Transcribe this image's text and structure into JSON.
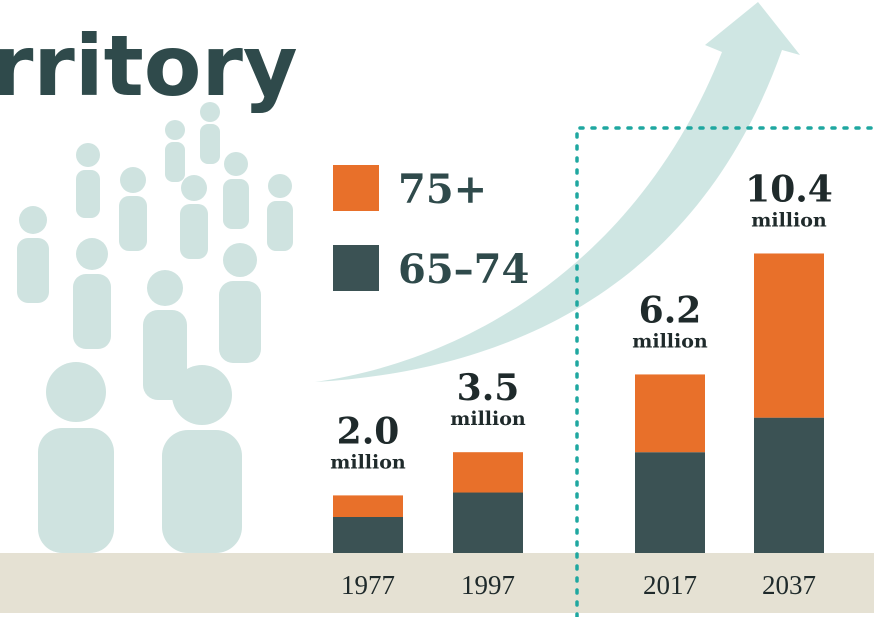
{
  "chart_data": {
    "type": "stacked-bar",
    "title": "rritory",
    "categories": [
      "1977",
      "1997",
      "2017",
      "2037"
    ],
    "series": [
      {
        "name": "65–74",
        "color": "#3b5254",
        "values": [
          1.25,
          2.1,
          3.5,
          4.7
        ]
      },
      {
        "name": "75+",
        "color": "#e8702a",
        "values": [
          0.75,
          1.4,
          2.7,
          5.7
        ]
      }
    ],
    "totals": {
      "values": [
        2.0,
        3.5,
        6.2,
        10.4
      ],
      "value_labels": [
        "2.0",
        "3.5",
        "6.2",
        "10.4"
      ]
    },
    "total_unit": "million"
  }
}
